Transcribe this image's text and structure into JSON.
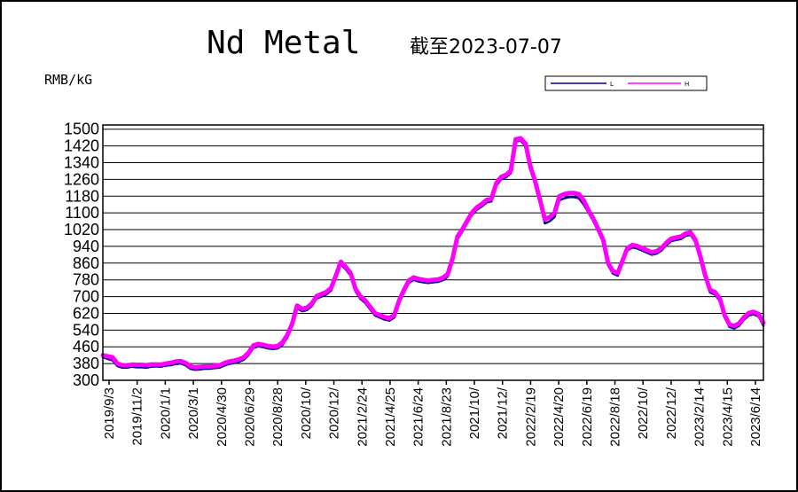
{
  "chart_data": {
    "type": "line",
    "title": "Nd Metal",
    "subtitle": "截至2023-07-07",
    "ylabel": "RMB/kG",
    "ylim": [
      300,
      1520
    ],
    "yticks": [
      300,
      380,
      460,
      540,
      620,
      700,
      780,
      860,
      940,
      1020,
      1100,
      1180,
      1260,
      1340,
      1420,
      1500
    ],
    "grid": true,
    "legend_position": "top-right",
    "xlabels": [
      "2019/9/3",
      "2019/11/2",
      "2020/1/1",
      "2020/3/1",
      "2020/4/30",
      "2020/6/29",
      "2020/8/28",
      "2020/10/",
      "2020/12/",
      "2021/2/24",
      "2021/4/25",
      "2021/6/24",
      "2021/8/23",
      "2021/10/",
      "2021/12/",
      "2022/2/19",
      "2022/4/20",
      "2022/6/19",
      "2022/8/18",
      "2022/10/",
      "2022/12/",
      "2023/2/14",
      "2023/4/15",
      "2023/6/14"
    ],
    "series": [
      {
        "name": "L",
        "color": "#00008B",
        "values": [
          410,
          402,
          395,
          368,
          360,
          360,
          365,
          362,
          362,
          360,
          365,
          366,
          365,
          370,
          372,
          378,
          380,
          372,
          355,
          350,
          352,
          355,
          355,
          358,
          360,
          370,
          378,
          382,
          388,
          398,
          420,
          455,
          462,
          458,
          452,
          449,
          452,
          470,
          505,
          560,
          645,
          630,
          635,
          655,
          690,
          700,
          710,
          730,
          790,
          855,
          830,
          800,
          725,
          690,
          670,
          640,
          610,
          600,
          590,
          585,
          600,
          670,
          720,
          765,
          780,
          772,
          768,
          765,
          768,
          770,
          778,
          795,
          870,
          975,
          1010,
          1050,
          1090,
          1115,
          1130,
          1150,
          1155,
          1230,
          1260,
          1270,
          1290,
          1440,
          1445,
          1420,
          1310,
          1240,
          1150,
          1050,
          1060,
          1080,
          1160,
          1170,
          1175,
          1175,
          1170,
          1140,
          1100,
          1060,
          1010,
          960,
          850,
          810,
          800,
          860,
          920,
          935,
          930,
          920,
          910,
          900,
          905,
          920,
          945,
          965,
          970,
          975,
          990,
          995,
          960,
          880,
          790,
          720,
          710,
          680,
          600,
          555,
          548,
          560,
          590,
          610,
          615,
          605,
          560
        ]
      },
      {
        "name": "H",
        "color": "#FF00FF",
        "values": [
          420,
          415,
          410,
          380,
          372,
          372,
          375,
          374,
          374,
          372,
          376,
          376,
          375,
          380,
          384,
          390,
          392,
          384,
          367,
          362,
          364,
          366,
          366,
          370,
          372,
          382,
          390,
          394,
          400,
          410,
          432,
          467,
          474,
          470,
          464,
          461,
          464,
          482,
          518,
          572,
          657,
          642,
          647,
          667,
          702,
          712,
          722,
          742,
          802,
          867,
          842,
          812,
          737,
          702,
          682,
          652,
          622,
          612,
          602,
          597,
          612,
          682,
          732,
          777,
          792,
          784,
          780,
          777,
          780,
          782,
          790,
          807,
          882,
          987,
          1022,
          1062,
          1102,
          1127,
          1142,
          1162,
          1167,
          1242,
          1272,
          1282,
          1302,
          1452,
          1457,
          1432,
          1322,
          1252,
          1162,
          1070,
          1080,
          1100,
          1180,
          1190,
          1195,
          1195,
          1190,
          1160,
          1112,
          1072,
          1022,
          972,
          862,
          822,
          812,
          872,
          932,
          947,
          942,
          932,
          922,
          912,
          917,
          932,
          957,
          977,
          982,
          987,
          1002,
          1007,
          972,
          892,
          802,
          732,
          722,
          692,
          612,
          567,
          560,
          572,
          602,
          622,
          627,
          617,
          575
        ]
      }
    ]
  },
  "colors": {
    "background": "#FFFFFF",
    "frame": "#000000",
    "grid": "#000000"
  }
}
